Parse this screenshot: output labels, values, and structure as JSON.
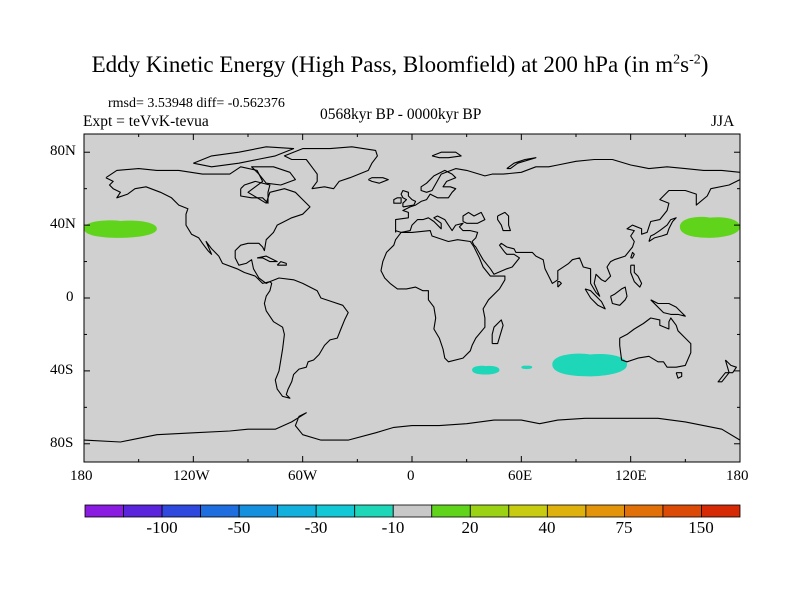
{
  "title": {
    "main": "Eddy Kinetic Energy (High Pass, Bloomfield) at 200 hPa (in m",
    "sup1": "2",
    "mid": "s",
    "sup2": "-2",
    "close": ")"
  },
  "stats_line": "rmsd= 3.53948 diff= -0.562376",
  "experiment": "Expt = teVvK-tevua",
  "period": "0568kyr BP - 0000kyr BP",
  "season": "JJA",
  "y_axis_labels": [
    "80N",
    "40N",
    "0",
    "40S",
    "80S"
  ],
  "x_axis_labels": [
    "180",
    "120W",
    "60W",
    "0",
    "60E",
    "120E",
    "180"
  ],
  "colorbar": {
    "labels": [
      "-100",
      "-50",
      "-30",
      "-10",
      "20",
      "40",
      "75",
      "150"
    ],
    "colors": [
      "#8a1be0",
      "#5a24dc",
      "#2f49de",
      "#1f6ee0",
      "#1590de",
      "#12b0dc",
      "#13c8d6",
      "#1ed6b8",
      "#c8c8c8",
      "#5fd41a",
      "#9cd214",
      "#c8cc10",
      "#dfb10c",
      "#e4940a",
      "#e27008",
      "#dc4a08",
      "#d62a06"
    ]
  },
  "map_colors": {
    "background": "#d0d0d0",
    "positive_anomaly": "#5fd41a",
    "negative_anomaly": "#1ed6b8",
    "coastline": "#000000"
  },
  "anomaly_regions": [
    {
      "name": "north-pacific-west-patch",
      "sign": "positive",
      "lon": [
        -180,
        -140
      ],
      "lat": [
        33,
        43
      ]
    },
    {
      "name": "north-pacific-east-patch",
      "sign": "positive",
      "lon": [
        147,
        180
      ],
      "lat": [
        33,
        45
      ]
    },
    {
      "name": "south-atlantic-indian-patch",
      "sign": "negative",
      "lon": [
        33,
        48
      ],
      "lat": [
        -42,
        -37
      ]
    },
    {
      "name": "south-indian-small-patch",
      "sign": "negative",
      "lon": [
        60,
        66
      ],
      "lat": [
        -39,
        -37
      ]
    },
    {
      "name": "south-indian-large-patch",
      "sign": "negative",
      "lon": [
        77,
        118
      ],
      "lat": [
        -43,
        -30
      ]
    }
  ]
}
